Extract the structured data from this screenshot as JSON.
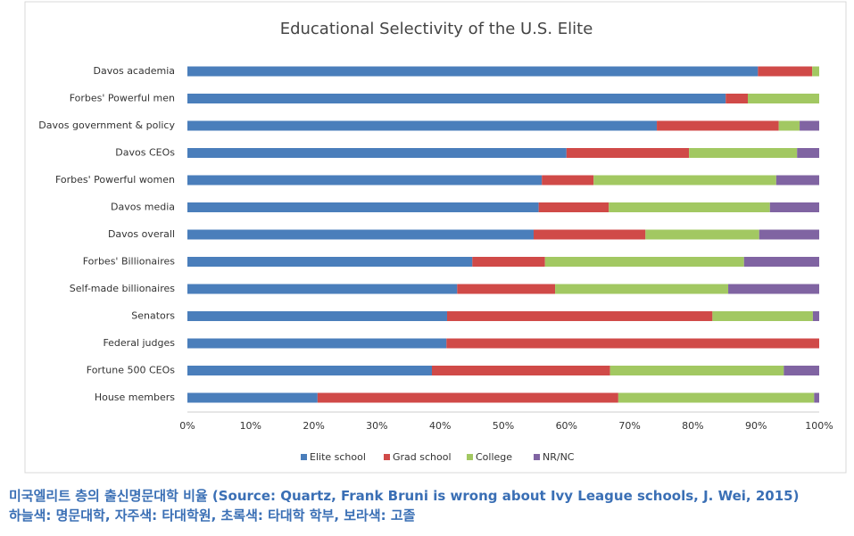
{
  "chart_data": {
    "type": "stacked-bar-horizontal",
    "title": "Educational Selectivity of the U.S. Elite",
    "categories": [
      "Davos academia",
      "Forbes' Powerful men",
      "Davos government & policy",
      "Davos CEOs",
      "Forbes' Powerful women",
      "Davos media",
      "Davos overall",
      "Forbes' Billionaires",
      "Self-made billionaires",
      "Senators",
      "Federal judges",
      "Fortune 500 CEOs",
      "House members"
    ],
    "series": [
      {
        "name": "Elite school",
        "color": "#4a7ebb",
        "values": [
          90.3,
          85.2,
          74.3,
          60.0,
          56.1,
          55.6,
          54.8,
          45.1,
          42.7,
          41.1,
          41.0,
          38.7,
          20.6
        ]
      },
      {
        "name": "Grad school",
        "color": "#d04a48",
        "values": [
          8.6,
          3.5,
          19.3,
          19.4,
          8.2,
          11.1,
          17.7,
          11.5,
          15.5,
          42.0,
          59.0,
          28.2,
          47.6
        ]
      },
      {
        "name": "College",
        "color": "#a2c862",
        "values": [
          1.1,
          11.3,
          3.3,
          17.1,
          28.9,
          25.5,
          18.0,
          31.5,
          27.4,
          15.9,
          0,
          27.5,
          31.0
        ]
      },
      {
        "name": "NR/NC",
        "color": "#8064a2",
        "values": [
          0,
          0,
          3.1,
          3.5,
          6.8,
          7.8,
          9.5,
          11.9,
          14.4,
          1.0,
          0,
          5.6,
          0.8
        ]
      }
    ],
    "xlim": [
      0,
      100
    ],
    "xticks": [
      {
        "value": 0,
        "label": "0%"
      },
      {
        "value": 10,
        "label": "10%"
      },
      {
        "value": 20,
        "label": "20%"
      },
      {
        "value": 30,
        "label": "30%"
      },
      {
        "value": 40,
        "label": "40%"
      },
      {
        "value": 50,
        "label": "50%"
      },
      {
        "value": 60,
        "label": "60%"
      },
      {
        "value": 70,
        "label": "70%"
      },
      {
        "value": 80,
        "label": "80%"
      },
      {
        "value": 90,
        "label": "90%"
      },
      {
        "value": 100,
        "label": "100%"
      }
    ],
    "grid": false,
    "legend": "bottom"
  },
  "caption": [
    "미국엘리트 층의 출신명문대학 비율 (Source: Quartz, Frank Bruni is wrong about Ivy League schools, J. Wei, 2015)",
    "하늘색: 명문대학, 자주색: 타대학원, 초록색: 타대학 학부, 보라색: 고졸"
  ]
}
